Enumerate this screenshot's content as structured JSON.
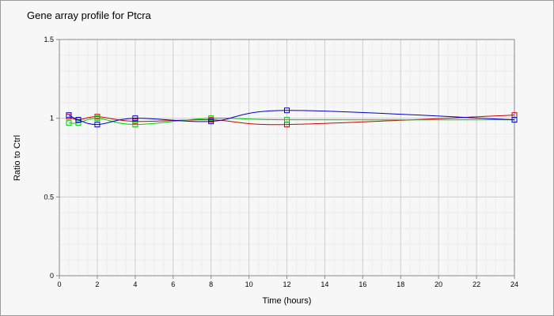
{
  "chart_data": {
    "type": "line",
    "title": "Gene array profile for Ptcra",
    "xlabel": "Time (hours)",
    "ylabel": "Ratio to Ctrl",
    "xlim": [
      0,
      24
    ],
    "ylim": [
      0,
      1.5
    ],
    "x_ticks": [
      "0",
      "2",
      "4",
      "6",
      "8",
      "10",
      "12",
      "14",
      "16",
      "18",
      "20",
      "22",
      "24"
    ],
    "y_ticks": [
      "0",
      "0.5",
      "1",
      "1.5"
    ],
    "grid": true,
    "legend": "none",
    "series": [
      {
        "color": "#cc0000",
        "marker": "square-open",
        "x": [
          0.5,
          1,
          2,
          4,
          8,
          12,
          24
        ],
        "y": [
          1.01,
          0.99,
          1.01,
          0.98,
          0.99,
          0.96,
          1.02
        ]
      },
      {
        "color": "#00cc00",
        "marker": "square-open",
        "x": [
          0.5,
          1,
          2,
          4,
          8,
          12,
          24
        ],
        "y": [
          0.97,
          0.97,
          1.0,
          0.96,
          1.0,
          0.99,
          0.99
        ]
      },
      {
        "color": "#0000cc",
        "marker": "square-open",
        "x": [
          0.5,
          1,
          2,
          4,
          8,
          12,
          24
        ],
        "y": [
          1.02,
          0.99,
          0.96,
          1.0,
          0.98,
          1.05,
          0.99
        ]
      }
    ]
  }
}
